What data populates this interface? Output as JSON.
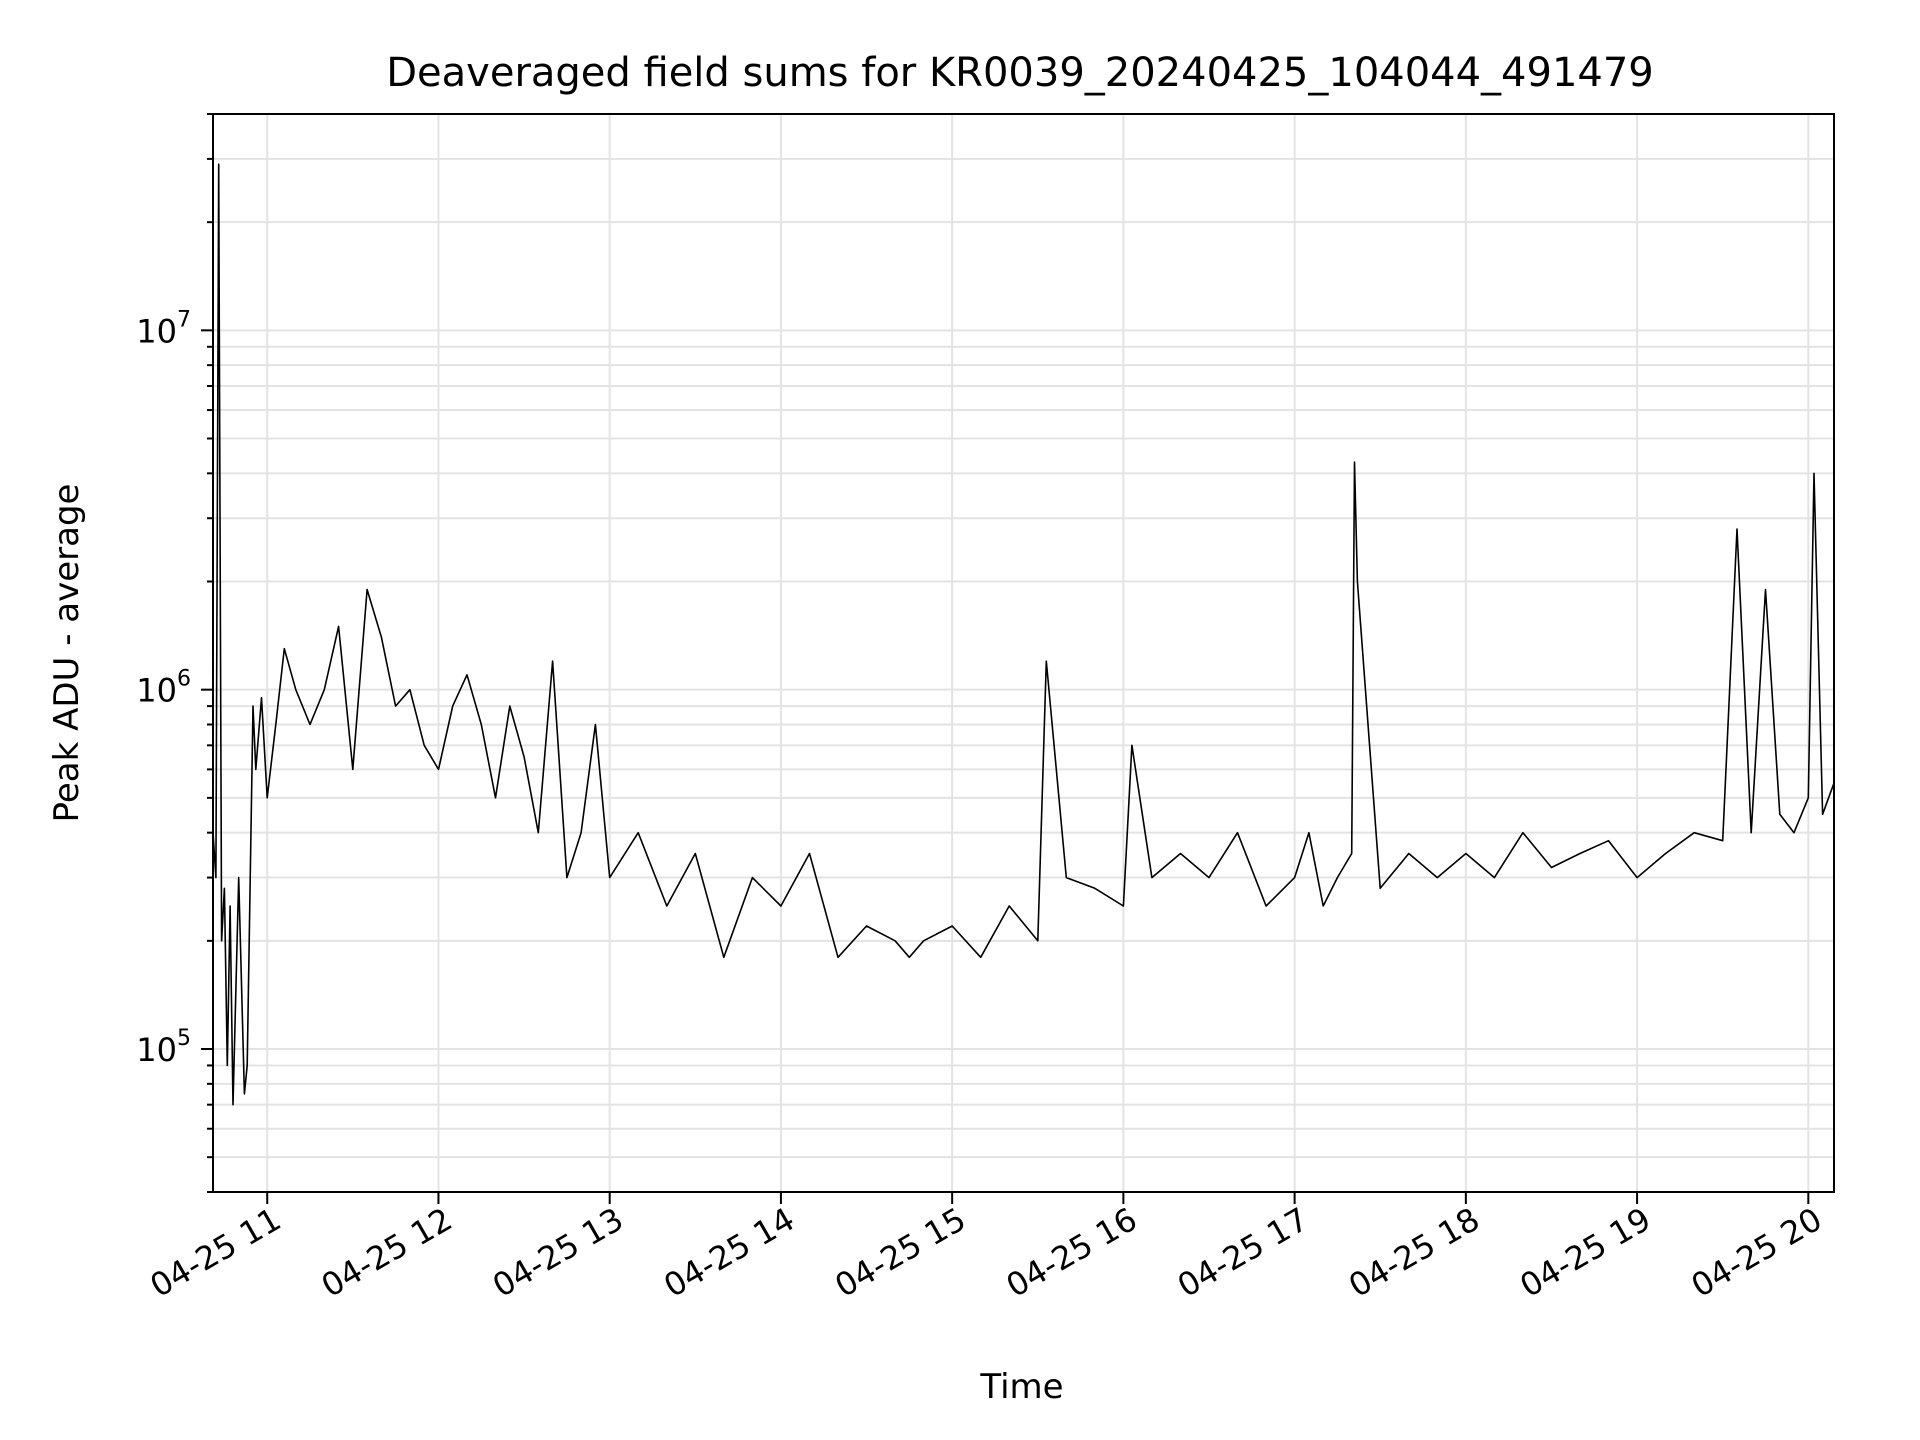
{
  "chart_data": {
    "type": "line",
    "title": "Deaveraged field sums for KR0039_20240425_104044_491479",
    "xlabel": "Time",
    "ylabel": "Peak ADU - average",
    "yscale": "log",
    "ylim": [
      40000,
      40000000
    ],
    "xlim": [
      "2024-04-25 10:41",
      "2024-04-25 20:09"
    ],
    "grid": true,
    "line_color": "#000000",
    "x_tick_labels": [
      "04-25 11",
      "04-25 12",
      "04-25 13",
      "04-25 14",
      "04-25 15",
      "04-25 16",
      "04-25 17",
      "04-25 18",
      "04-25 19",
      "04-25 20"
    ],
    "y_tick_labels": [
      {
        "base": "10",
        "exp": "5"
      },
      {
        "base": "10",
        "exp": "6"
      },
      {
        "base": "10",
        "exp": "7"
      }
    ],
    "series": [
      {
        "x": [
          "2024-04-25 10:41",
          "2024-04-25 10:42",
          "2024-04-25 10:43",
          "2024-04-25 10:44",
          "2024-04-25 10:45",
          "2024-04-25 10:46",
          "2024-04-25 10:47",
          "2024-04-25 10:48",
          "2024-04-25 10:50",
          "2024-04-25 10:52",
          "2024-04-25 10:53",
          "2024-04-25 10:55",
          "2024-04-25 10:56",
          "2024-04-25 10:58",
          "2024-04-25 11:00",
          "2024-04-25 11:03",
          "2024-04-25 11:06",
          "2024-04-25 11:10",
          "2024-04-25 11:15",
          "2024-04-25 11:20",
          "2024-04-25 11:25",
          "2024-04-25 11:30",
          "2024-04-25 11:35",
          "2024-04-25 11:40",
          "2024-04-25 11:45",
          "2024-04-25 11:50",
          "2024-04-25 11:55",
          "2024-04-25 12:00",
          "2024-04-25 12:05",
          "2024-04-25 12:10",
          "2024-04-25 12:15",
          "2024-04-25 12:20",
          "2024-04-25 12:25",
          "2024-04-25 12:30",
          "2024-04-25 12:35",
          "2024-04-25 12:40",
          "2024-04-25 12:45",
          "2024-04-25 12:50",
          "2024-04-25 12:55",
          "2024-04-25 13:00",
          "2024-04-25 13:10",
          "2024-04-25 13:20",
          "2024-04-25 13:30",
          "2024-04-25 13:40",
          "2024-04-25 13:50",
          "2024-04-25 14:00",
          "2024-04-25 14:10",
          "2024-04-25 14:20",
          "2024-04-25 14:30",
          "2024-04-25 14:40",
          "2024-04-25 14:45",
          "2024-04-25 14:50",
          "2024-04-25 15:00",
          "2024-04-25 15:10",
          "2024-04-25 15:20",
          "2024-04-25 15:30",
          "2024-04-25 15:33",
          "2024-04-25 15:40",
          "2024-04-25 15:50",
          "2024-04-25 16:00",
          "2024-04-25 16:03",
          "2024-04-25 16:10",
          "2024-04-25 16:20",
          "2024-04-25 16:30",
          "2024-04-25 16:40",
          "2024-04-25 16:50",
          "2024-04-25 17:00",
          "2024-04-25 17:05",
          "2024-04-25 17:10",
          "2024-04-25 17:15",
          "2024-04-25 17:20",
          "2024-04-25 17:21",
          "2024-04-25 17:22",
          "2024-04-25 17:30",
          "2024-04-25 17:40",
          "2024-04-25 17:50",
          "2024-04-25 18:00",
          "2024-04-25 18:10",
          "2024-04-25 18:20",
          "2024-04-25 18:30",
          "2024-04-25 18:40",
          "2024-04-25 18:50",
          "2024-04-25 19:00",
          "2024-04-25 19:10",
          "2024-04-25 19:20",
          "2024-04-25 19:30",
          "2024-04-25 19:35",
          "2024-04-25 19:40",
          "2024-04-25 19:45",
          "2024-04-25 19:50",
          "2024-04-25 19:55",
          "2024-04-25 20:00",
          "2024-04-25 20:02",
          "2024-04-25 20:05",
          "2024-04-25 20:09"
        ],
        "y": [
          400000,
          300000,
          29000000,
          200000,
          280000,
          90000,
          250000,
          70000,
          300000,
          75000,
          90000,
          900000,
          600000,
          950000,
          500000,
          800000,
          1300000,
          1000000,
          800000,
          1000000,
          1500000,
          600000,
          1900000,
          1400000,
          900000,
          1000000,
          700000,
          600000,
          900000,
          1100000,
          800000,
          500000,
          900000,
          650000,
          400000,
          1200000,
          300000,
          400000,
          800000,
          300000,
          400000,
          250000,
          350000,
          180000,
          300000,
          250000,
          350000,
          180000,
          220000,
          200000,
          180000,
          200000,
          220000,
          180000,
          250000,
          200000,
          1200000,
          300000,
          280000,
          250000,
          700000,
          300000,
          350000,
          300000,
          400000,
          250000,
          300000,
          400000,
          250000,
          300000,
          350000,
          4300000,
          2000000,
          280000,
          350000,
          300000,
          350000,
          300000,
          400000,
          320000,
          350000,
          380000,
          300000,
          350000,
          400000,
          380000,
          2800000,
          400000,
          1900000,
          450000,
          400000,
          500000,
          4000000,
          450000,
          550000
        ]
      }
    ]
  }
}
